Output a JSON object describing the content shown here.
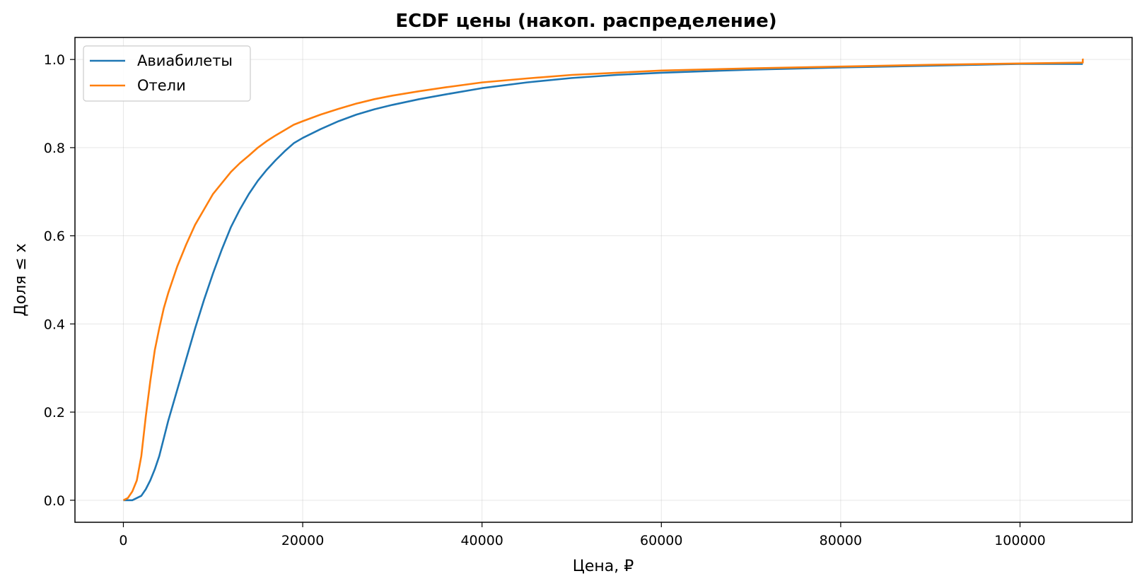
{
  "chart_data": {
    "type": "line",
    "title": "ECDF цены (накоп. распределение)",
    "xlabel": "Цена, ₽",
    "ylabel": "Доля ≤ x",
    "xlim": [
      -5400,
      112500
    ],
    "ylim": [
      -0.05,
      1.05
    ],
    "xticks": [
      0,
      20000,
      40000,
      60000,
      80000,
      100000
    ],
    "yticks": [
      0.0,
      0.2,
      0.4,
      0.6,
      0.8,
      1.0
    ],
    "xtick_labels": [
      "0",
      "20000",
      "40000",
      "60000",
      "80000",
      "100000"
    ],
    "ytick_labels": [
      "0.0",
      "0.2",
      "0.4",
      "0.6",
      "0.8",
      "1.0"
    ],
    "grid": true,
    "legend_position": "top-left",
    "series": [
      {
        "name": "Авиабилеты",
        "color": "#1f77b4",
        "x": [
          0,
          1000,
          1500,
          2000,
          2500,
          3000,
          3500,
          4000,
          4500,
          5000,
          5500,
          6000,
          7000,
          8000,
          9000,
          10000,
          11000,
          12000,
          13000,
          14000,
          15000,
          16000,
          17000,
          18000,
          19000,
          20000,
          22000,
          24000,
          26000,
          28000,
          30000,
          33000,
          36000,
          40000,
          45000,
          50000,
          55000,
          60000,
          70000,
          80000,
          90000,
          100000,
          107000
        ],
        "y": [
          0.0,
          0.0,
          0.005,
          0.01,
          0.025,
          0.045,
          0.07,
          0.1,
          0.14,
          0.18,
          0.215,
          0.25,
          0.32,
          0.39,
          0.455,
          0.515,
          0.57,
          0.62,
          0.66,
          0.695,
          0.725,
          0.75,
          0.772,
          0.792,
          0.81,
          0.822,
          0.842,
          0.86,
          0.875,
          0.887,
          0.897,
          0.91,
          0.921,
          0.935,
          0.948,
          0.958,
          0.965,
          0.97,
          0.977,
          0.982,
          0.986,
          0.99,
          0.99
        ]
      },
      {
        "name": "Отели",
        "color": "#ff7f0e",
        "x": [
          0,
          500,
          1000,
          1500,
          2000,
          2500,
          3000,
          3500,
          4000,
          4500,
          5000,
          6000,
          7000,
          8000,
          9000,
          10000,
          11000,
          12000,
          13000,
          14000,
          15000,
          16000,
          17000,
          18000,
          19000,
          20000,
          22000,
          24000,
          26000,
          28000,
          30000,
          33000,
          36000,
          40000,
          45000,
          50000,
          55000,
          60000,
          70000,
          80000,
          90000,
          100000,
          107000,
          107000,
          107100
        ],
        "y": [
          0.0,
          0.005,
          0.02,
          0.045,
          0.1,
          0.19,
          0.27,
          0.34,
          0.39,
          0.435,
          0.47,
          0.53,
          0.58,
          0.625,
          0.66,
          0.695,
          0.72,
          0.745,
          0.765,
          0.782,
          0.8,
          0.815,
          0.828,
          0.84,
          0.852,
          0.86,
          0.875,
          0.888,
          0.9,
          0.91,
          0.918,
          0.928,
          0.937,
          0.948,
          0.957,
          0.965,
          0.97,
          0.975,
          0.98,
          0.984,
          0.988,
          0.991,
          0.993,
          1.0,
          1.0
        ]
      }
    ]
  }
}
